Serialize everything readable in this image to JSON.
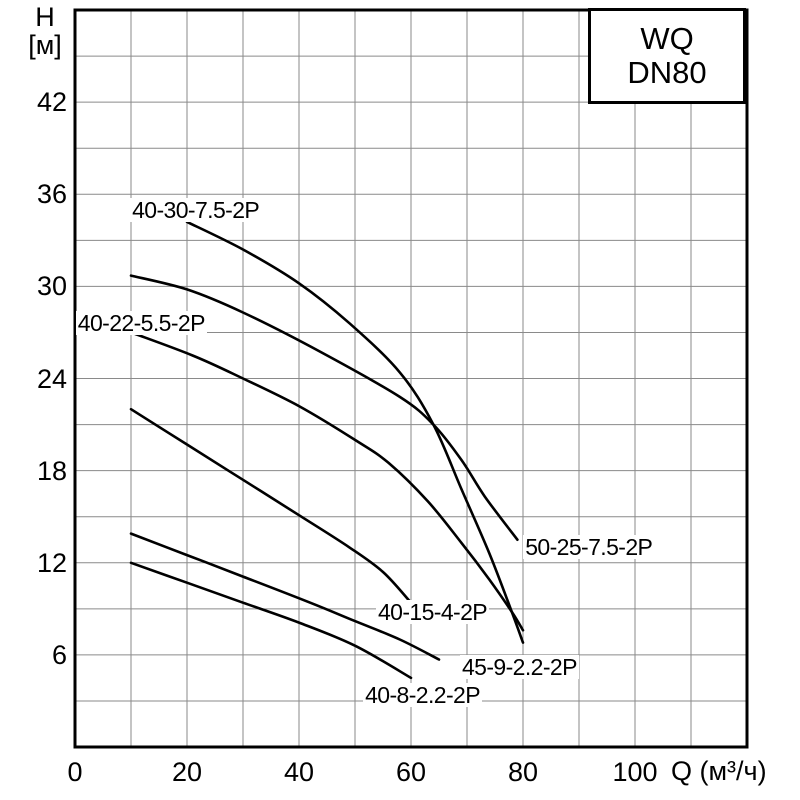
{
  "title_box": {
    "line1": "WQ",
    "line2": "DN80"
  },
  "y_axis_title": {
    "line1": "H",
    "line2": "[м]"
  },
  "x_axis_title": "Q (м³/ч)",
  "colors": {
    "curve": "#000000",
    "grid": "#8a8a8a",
    "border": "#000000",
    "text": "#000000",
    "background": "#ffffff"
  },
  "chart_data": {
    "type": "line",
    "title": "WQ DN80 pump performance curves",
    "xlabel": "Q (м³/ч)",
    "ylabel": "H [м]",
    "x_range": [
      0,
      120
    ],
    "y_range": [
      0,
      48
    ],
    "x_grid_step": 10,
    "y_grid_step": 3,
    "grid": "on",
    "x_tick_labels": [
      0,
      20,
      40,
      60,
      80,
      100
    ],
    "y_tick_labels": [
      6,
      12,
      18,
      24,
      30,
      36,
      42
    ],
    "series": [
      {
        "name": "40-30-7.5-2P",
        "label_anchor": {
          "q": 10.2,
          "h": 35.0
        },
        "points": [
          [
            20,
            34.2
          ],
          [
            30,
            32.4
          ],
          [
            40,
            30.2
          ],
          [
            49,
            27.6
          ],
          [
            58,
            24.4
          ],
          [
            64,
            21.0
          ],
          [
            69,
            16.8
          ],
          [
            74,
            12.6
          ],
          [
            78,
            8.8
          ],
          [
            80,
            6.8
          ]
        ]
      },
      {
        "name": "40-22-5.5-2P",
        "label_anchor": {
          "q": 0.5,
          "h": 27.6
        },
        "points": [
          [
            10,
            27.0
          ],
          [
            21,
            25.5
          ],
          [
            30,
            24.0
          ],
          [
            40,
            22.2
          ],
          [
            50,
            20.0
          ],
          [
            56,
            18.5
          ],
          [
            63,
            16.0
          ],
          [
            69,
            13.3
          ],
          [
            74,
            10.9
          ],
          [
            78,
            8.8
          ],
          [
            80,
            7.6
          ]
        ]
      },
      {
        "name": "50-25-7.5-2P",
        "label_anchor": {
          "q": 80.4,
          "h": 13.0
        },
        "points": [
          [
            10,
            30.7
          ],
          [
            20,
            29.8
          ],
          [
            30,
            28.3
          ],
          [
            44,
            25.7
          ],
          [
            58,
            22.8
          ],
          [
            64,
            21.0
          ],
          [
            69,
            18.7
          ],
          [
            73.2,
            16.3
          ],
          [
            79,
            13.5
          ]
        ]
      },
      {
        "name": "40-15-4-2P",
        "label_anchor": {
          "q": 54.1,
          "h": 8.8
        },
        "points": [
          [
            10,
            22.0
          ],
          [
            20,
            19.7
          ],
          [
            30,
            17.4
          ],
          [
            40,
            15.1
          ],
          [
            49,
            13.0
          ],
          [
            55,
            11.4
          ],
          [
            60,
            9.4
          ]
        ]
      },
      {
        "name": "45-9-2.2-2P",
        "label_anchor": {
          "q": 69.1,
          "h": 5.2
        },
        "points": [
          [
            10,
            13.9
          ],
          [
            20,
            12.5
          ],
          [
            30,
            11.1
          ],
          [
            42,
            9.4
          ],
          [
            50,
            8.2
          ],
          [
            58,
            7.0
          ],
          [
            65,
            5.7
          ]
        ]
      },
      {
        "name": "40-8-2.2-2P",
        "label_anchor": {
          "q": 51.8,
          "h": 3.4
        },
        "points": [
          [
            10,
            12.0
          ],
          [
            20,
            10.7
          ],
          [
            30,
            9.4
          ],
          [
            40,
            8.1
          ],
          [
            50,
            6.6
          ],
          [
            60,
            4.5
          ]
        ]
      }
    ]
  }
}
